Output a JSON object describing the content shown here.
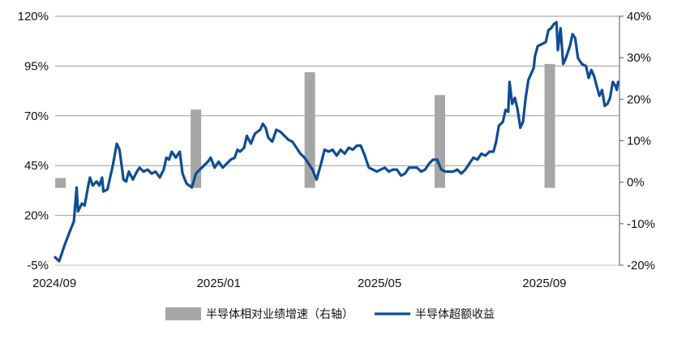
{
  "chart_data": {
    "type": "bar+line",
    "x_ticks": [
      "2024/09",
      "2025/01",
      "2025/05",
      "2025/09"
    ],
    "y_left": {
      "ticks": [
        "120%",
        "95%",
        "70%",
        "45%",
        "20%",
        "-5%"
      ],
      "range": [
        -5,
        120
      ]
    },
    "y_right": {
      "ticks": [
        "40%",
        "30%",
        "20%",
        "10%",
        "0%",
        "-10%",
        "-20%"
      ],
      "range": [
        -20,
        40
      ]
    },
    "grid": true,
    "legend_position": "bottom",
    "series": [
      {
        "name": "半导体相对业绩增速（右轴）",
        "type": "bar",
        "axis": "right",
        "color": "#a6a6a6",
        "points": [
          {
            "x": "2024-09-05",
            "y": 1.0
          },
          {
            "x": "2024-12-15",
            "y": 17.5
          },
          {
            "x": "2025-03-10",
            "y": 26.5
          },
          {
            "x": "2025-06-15",
            "y": 21.0
          },
          {
            "x": "2025-09-05",
            "y": 28.5
          }
        ]
      },
      {
        "name": "半导体超额收益",
        "type": "line",
        "axis": "left",
        "color": "#0e4d92",
        "points": [
          [
            "2024-09-01",
            -1
          ],
          [
            "2024-09-04",
            -3
          ],
          [
            "2024-09-08",
            5
          ],
          [
            "2024-09-12",
            12
          ],
          [
            "2024-09-15",
            17
          ],
          [
            "2024-09-17",
            34
          ],
          [
            "2024-09-18",
            22
          ],
          [
            "2024-09-21",
            26
          ],
          [
            "2024-09-23",
            25
          ],
          [
            "2024-09-26",
            36
          ],
          [
            "2024-09-27",
            39
          ],
          [
            "2024-09-29",
            35
          ],
          [
            "2024-10-02",
            37
          ],
          [
            "2024-10-04",
            35
          ],
          [
            "2024-10-06",
            39
          ],
          [
            "2024-10-07",
            32
          ],
          [
            "2024-10-10",
            33
          ],
          [
            "2024-10-14",
            45
          ],
          [
            "2024-10-17",
            56
          ],
          [
            "2024-10-19",
            53
          ],
          [
            "2024-10-22",
            38
          ],
          [
            "2024-10-24",
            37
          ],
          [
            "2024-10-26",
            42
          ],
          [
            "2024-10-29",
            38
          ],
          [
            "2024-11-01",
            42
          ],
          [
            "2024-11-03",
            44
          ],
          [
            "2024-11-06",
            42
          ],
          [
            "2024-11-09",
            43
          ],
          [
            "2024-11-12",
            41
          ],
          [
            "2024-11-15",
            42
          ],
          [
            "2024-11-18",
            39
          ],
          [
            "2024-11-21",
            43
          ],
          [
            "2024-11-23",
            49
          ],
          [
            "2024-11-25",
            48
          ],
          [
            "2024-11-27",
            52
          ],
          [
            "2024-11-30",
            49
          ],
          [
            "2024-12-03",
            52
          ],
          [
            "2024-12-05",
            41
          ],
          [
            "2024-12-08",
            36
          ],
          [
            "2024-12-12",
            34
          ],
          [
            "2024-12-15",
            41
          ],
          [
            "2024-12-18",
            43
          ],
          [
            "2024-12-21",
            45
          ],
          [
            "2024-12-24",
            47
          ],
          [
            "2024-12-26",
            49
          ],
          [
            "2024-12-29",
            44
          ],
          [
            "2025-01-01",
            47
          ],
          [
            "2025-01-04",
            44
          ],
          [
            "2025-01-07",
            46
          ],
          [
            "2025-01-10",
            48
          ],
          [
            "2025-01-13",
            49
          ],
          [
            "2025-01-15",
            53
          ],
          [
            "2025-01-17",
            52
          ],
          [
            "2025-01-20",
            54
          ],
          [
            "2025-01-22",
            60
          ],
          [
            "2025-01-25",
            56
          ],
          [
            "2025-01-28",
            61
          ],
          [
            "2025-02-01",
            63
          ],
          [
            "2025-02-03",
            66
          ],
          [
            "2025-02-05",
            64
          ],
          [
            "2025-02-07",
            59
          ],
          [
            "2025-02-10",
            57
          ],
          [
            "2025-02-13",
            63
          ],
          [
            "2025-02-16",
            62
          ],
          [
            "2025-02-19",
            60
          ],
          [
            "2025-02-22",
            58
          ],
          [
            "2025-02-25",
            57
          ],
          [
            "2025-02-28",
            54
          ],
          [
            "2025-03-03",
            51
          ],
          [
            "2025-03-06",
            49
          ],
          [
            "2025-03-09",
            46
          ],
          [
            "2025-03-12",
            43
          ],
          [
            "2025-03-15",
            38
          ],
          [
            "2025-03-18",
            45
          ],
          [
            "2025-03-21",
            53
          ],
          [
            "2025-03-24",
            52
          ],
          [
            "2025-03-27",
            53
          ],
          [
            "2025-03-30",
            50
          ],
          [
            "2025-04-02",
            53
          ],
          [
            "2025-04-05",
            51
          ],
          [
            "2025-04-08",
            54
          ],
          [
            "2025-04-11",
            53
          ],
          [
            "2025-04-14",
            55
          ],
          [
            "2025-04-17",
            55
          ],
          [
            "2025-04-20",
            50
          ],
          [
            "2025-04-23",
            44
          ],
          [
            "2025-04-26",
            43
          ],
          [
            "2025-04-29",
            42
          ],
          [
            "2025-05-02",
            43
          ],
          [
            "2025-05-05",
            44
          ],
          [
            "2025-05-08",
            42
          ],
          [
            "2025-05-11",
            43
          ],
          [
            "2025-05-14",
            43
          ],
          [
            "2025-05-17",
            40
          ],
          [
            "2025-05-20",
            41
          ],
          [
            "2025-05-23",
            44
          ],
          [
            "2025-05-26",
            44
          ],
          [
            "2025-05-29",
            44
          ],
          [
            "2025-06-01",
            42
          ],
          [
            "2025-06-04",
            43
          ],
          [
            "2025-06-07",
            46
          ],
          [
            "2025-06-10",
            48
          ],
          [
            "2025-06-13",
            48
          ],
          [
            "2025-06-16",
            43
          ],
          [
            "2025-06-19",
            42
          ],
          [
            "2025-06-22",
            42
          ],
          [
            "2025-06-25",
            42
          ],
          [
            "2025-06-28",
            43
          ],
          [
            "2025-07-01",
            41
          ],
          [
            "2025-07-04",
            43
          ],
          [
            "2025-07-07",
            46
          ],
          [
            "2025-07-10",
            49
          ],
          [
            "2025-07-13",
            48
          ],
          [
            "2025-07-16",
            51
          ],
          [
            "2025-07-19",
            50
          ],
          [
            "2025-07-22",
            52
          ],
          [
            "2025-07-25",
            52
          ],
          [
            "2025-07-27",
            57
          ],
          [
            "2025-07-29",
            65
          ],
          [
            "2025-08-01",
            67
          ],
          [
            "2025-08-03",
            73
          ],
          [
            "2025-08-05",
            72
          ],
          [
            "2025-08-06",
            87
          ],
          [
            "2025-08-08",
            76
          ],
          [
            "2025-08-10",
            79
          ],
          [
            "2025-08-12",
            73
          ],
          [
            "2025-08-14",
            64
          ],
          [
            "2025-08-16",
            67
          ],
          [
            "2025-08-18",
            79
          ],
          [
            "2025-08-20",
            88
          ],
          [
            "2025-08-22",
            91
          ],
          [
            "2025-08-24",
            94
          ],
          [
            "2025-08-25",
            100
          ],
          [
            "2025-08-27",
            105
          ],
          [
            "2025-08-30",
            106
          ],
          [
            "2025-09-02",
            107
          ],
          [
            "2025-09-04",
            113
          ],
          [
            "2025-09-06",
            114
          ],
          [
            "2025-09-08",
            116
          ],
          [
            "2025-09-10",
            117
          ],
          [
            "2025-09-11",
            103
          ],
          [
            "2025-09-13",
            114
          ],
          [
            "2025-09-15",
            96
          ],
          [
            "2025-09-17",
            99
          ],
          [
            "2025-09-20",
            105
          ],
          [
            "2025-09-22",
            111
          ],
          [
            "2025-09-24",
            109
          ],
          [
            "2025-09-26",
            99
          ],
          [
            "2025-09-29",
            96
          ],
          [
            "2025-10-02",
            95
          ],
          [
            "2025-10-04",
            89
          ],
          [
            "2025-10-06",
            93
          ],
          [
            "2025-10-08",
            90
          ],
          [
            "2025-10-10",
            85
          ],
          [
            "2025-10-12",
            80
          ],
          [
            "2025-10-14",
            83
          ],
          [
            "2025-10-16",
            75
          ],
          [
            "2025-10-18",
            76
          ],
          [
            "2025-10-20",
            79
          ],
          [
            "2025-10-22",
            87
          ],
          [
            "2025-10-24",
            85
          ],
          [
            "2025-10-25",
            83
          ],
          [
            "2025-10-26",
            87
          ]
        ]
      }
    ]
  }
}
